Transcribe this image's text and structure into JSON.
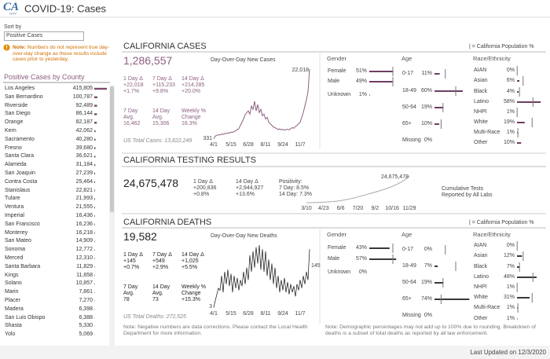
{
  "header": {
    "logo": "CA",
    "logo_sub": "GOV",
    "title": "COVID-19: Cases"
  },
  "sidebar": {
    "sort_label": "Sort by",
    "sort_value": "Positive Cases",
    "note_label": "Note:",
    "note": "Numbers do not represent true day-over-day change as these results include cases prior to yesterday.",
    "list_title": "Positive Cases by County",
    "counties": {
      "names": [
        "Los Angeles",
        "San Bernardino",
        "Riverside",
        "San Diego",
        "Orange",
        "Kern",
        "Sacramento",
        "Fresno",
        "Santa Clara",
        "Alameda",
        "San Joaquin",
        "Contra Costa",
        "Stanislaus",
        "Tulare",
        "Ventura",
        "Imperial",
        "San Francisco",
        "Monterey",
        "San Mateo",
        "Sonoma",
        "Merced",
        "Santa Barbara",
        "Kings",
        "Solano",
        "Marin",
        "Placer",
        "Madera",
        "San Luis Obispo",
        "Shasta",
        "Yolo"
      ],
      "values": [
        415805,
        100787,
        92489,
        86144,
        82187,
        42062,
        40280,
        39680,
        36621,
        31184,
        27239,
        25464,
        22821,
        21993,
        21555,
        16436,
        16236,
        16218,
        14909,
        12772,
        12310,
        11829,
        11658,
        10857,
        7861,
        7270,
        6398,
        6388,
        5330,
        5069
      ],
      "value_labels": [
        "415,805",
        "100,787",
        "92,489",
        "86,144",
        "82,187",
        "42,062",
        "40,280",
        "39,680",
        "36,621",
        "31,184",
        "27,239",
        "25,464",
        "22,821",
        "21,993",
        "21,555",
        "16,436",
        "16,236",
        "16,218",
        "14,909",
        "12,772",
        "12,310",
        "11,829",
        "11,658",
        "10,857",
        "7,861",
        "7,270",
        "6,398",
        "6,388",
        "5,330",
        "5,069"
      ],
      "color": "#7b4a6e"
    }
  },
  "cases": {
    "title": "CALIFORNIA CASES",
    "total": "1,286,557",
    "deltas": [
      {
        "label": "1 Day Δ",
        "lines": [
          "+22,018",
          "+1.7%"
        ]
      },
      {
        "label": "7 Day Δ",
        "lines": [
          "+115,233",
          "+9.8%"
        ]
      },
      {
        "label": "14 Day Δ",
        "lines": [
          "+214,285",
          "+20.0%"
        ]
      }
    ],
    "averages": [
      {
        "label": "7 Day Avg.",
        "value": "16,462"
      },
      {
        "label": "14 Day Avg.",
        "value": "15,306"
      },
      {
        "label": "Weekly % Change",
        "value": "16.3%"
      }
    ],
    "us_total": "US Total Cases: 13,822,249",
    "chart": {
      "type": "line",
      "title": "Day-Over-Day New Cases",
      "x": [
        "4/1",
        null,
        null,
        null,
        null,
        null,
        null,
        null,
        null,
        null,
        null,
        "5/15",
        null,
        null,
        null,
        null,
        null,
        null,
        null,
        null,
        null,
        null,
        "6/28",
        null,
        null,
        null,
        null,
        null,
        null,
        null,
        null,
        null,
        null,
        "8/11",
        null,
        null,
        null,
        null,
        null,
        null,
        null,
        null,
        null,
        null,
        "9/24",
        null,
        null,
        null,
        null,
        null,
        null,
        null,
        null,
        null,
        null,
        "11/7",
        null,
        null,
        null,
        null,
        null,
        null
      ],
      "values": [
        331,
        1200,
        1400,
        1600,
        1500,
        1800,
        1700,
        2000,
        1900,
        2200,
        2100,
        2400,
        2300,
        2600,
        2800,
        3200,
        3500,
        4500,
        5500,
        6500,
        7800,
        8500,
        9000,
        8000,
        10500,
        9500,
        12000,
        9000,
        11000,
        8500,
        9500,
        7500,
        8000,
        6500,
        7000,
        5500,
        5000,
        4500,
        4000,
        3800,
        3500,
        3200,
        3400,
        3100,
        3300,
        3000,
        3200,
        3300,
        3100,
        3500,
        3800,
        3600,
        4200,
        4500,
        5000,
        5500,
        7000,
        8500,
        10500,
        12500,
        15000,
        22018
      ],
      "value_labels": [
        "331",
        null,
        null,
        null,
        null,
        null,
        null,
        null,
        null,
        null,
        null,
        null,
        null,
        null,
        null,
        null,
        null,
        null,
        null,
        null,
        null,
        null,
        null,
        null,
        null,
        null,
        null,
        null,
        null,
        null,
        null,
        null,
        null,
        null,
        null,
        null,
        null,
        null,
        null,
        null,
        null,
        null,
        null,
        null,
        null,
        null,
        null,
        null,
        null,
        null,
        null,
        null,
        null,
        null,
        null,
        null,
        null,
        null,
        null,
        null,
        null,
        "22,018"
      ],
      "color": "#8b5f80"
    },
    "demographics": {
      "legend": "| = California Population %",
      "color": "#6e3d62",
      "groups": [
        {
          "title": "Gender",
          "categories": [
            "Female",
            "Male",
            "Unknown"
          ],
          "values": [
            51,
            49,
            1
          ],
          "value_labels": [
            "51%",
            "49%",
            "1%"
          ],
          "population": [
            50,
            50,
            null
          ]
        },
        {
          "title": "Age",
          "categories": [
            "0-17",
            "18-49",
            "50-64",
            "65+",
            "Missing"
          ],
          "values": [
            11,
            60,
            19,
            10,
            0
          ],
          "value_labels": [
            "11%",
            "60%",
            "19%",
            "10%",
            "0%"
          ],
          "population": [
            23,
            45,
            18,
            14,
            null
          ]
        },
        {
          "title": "Race/Ethnicity",
          "categories": [
            "AIAN",
            "Asian",
            "Black",
            "Latino",
            "NHPI",
            "White",
            "Multi-Race",
            "Other"
          ],
          "values": [
            0,
            6,
            4,
            58,
            1,
            19,
            1,
            10
          ],
          "value_labels": [
            "0%",
            "6%",
            "4%",
            "58%",
            "1%",
            "19%",
            "1%",
            "10%"
          ],
          "population": [
            0.4,
            15,
            6,
            39,
            0.3,
            37,
            2.2,
            null
          ]
        }
      ]
    }
  },
  "testing": {
    "title": "CALIFORNIA TESTING RESULTS",
    "total": "24,675,478",
    "stats": [
      {
        "label": "1 Day Δ",
        "lines": [
          "+200,836",
          "+0.8%"
        ]
      },
      {
        "label": "14 Day Δ",
        "lines": [
          "+2,944,927",
          "+13.6%"
        ]
      },
      {
        "label": "Positivity:",
        "lines": [
          "7 Day: 8.5%",
          "14 Day: 7.3%"
        ]
      }
    ],
    "caption": "Cumulative Tests Reported by All Labs",
    "chart": {
      "type": "line",
      "x": [
        "3/10",
        null,
        null,
        null,
        "4/23",
        null,
        null,
        null,
        "6/6",
        null,
        null,
        null,
        "7/20",
        null,
        null,
        null,
        "9/2",
        null,
        null,
        null,
        "10/16",
        null,
        null,
        null,
        "11/29"
      ],
      "values": [
        0,
        20000,
        100000,
        250000,
        450000,
        700000,
        1000000,
        1400000,
        1900000,
        2600000,
        3400000,
        4300000,
        5300000,
        6400000,
        7500000,
        8600000,
        9700000,
        10900000,
        12100000,
        13500000,
        15000000,
        16800000,
        18800000,
        21300000,
        24675478
      ],
      "value_labels": [
        null,
        null,
        null,
        null,
        null,
        null,
        null,
        null,
        null,
        null,
        null,
        null,
        null,
        null,
        null,
        null,
        null,
        null,
        null,
        null,
        null,
        null,
        null,
        null,
        "24,675,478"
      ],
      "color": "#a8a8a8"
    }
  },
  "deaths": {
    "title": "CALIFORNIA DEATHS",
    "total": "19,582",
    "deltas": [
      {
        "label": "1 Day Δ",
        "lines": [
          "+145",
          "+0.7%"
        ]
      },
      {
        "label": "7 Day Δ",
        "lines": [
          "+549",
          "+2.9%"
        ]
      },
      {
        "label": "14 Day Δ",
        "lines": [
          "+1,025",
          "+5.5%"
        ]
      }
    ],
    "averages": [
      {
        "label": "7 Day Avg.",
        "value": "78"
      },
      {
        "label": "14 Day Avg.",
        "value": "73"
      },
      {
        "label": "Weekly % Change",
        "value": "+15.3%"
      }
    ],
    "us_total": "US Total Deaths: 272,525",
    "chart": {
      "type": "line",
      "title": "Day-Over-Day New Deaths",
      "x": [
        "4/1",
        null,
        null,
        null,
        null,
        null,
        null,
        null,
        null,
        null,
        null,
        "5/15",
        null,
        null,
        null,
        null,
        null,
        null,
        null,
        null,
        null,
        null,
        "6/28",
        null,
        null,
        null,
        null,
        null,
        null,
        null,
        null,
        null,
        null,
        "8/11",
        null,
        null,
        null,
        null,
        null,
        null,
        null,
        null,
        null,
        null,
        "9/24",
        null,
        null,
        null,
        null,
        null,
        null,
        null,
        null,
        null,
        null,
        "11/7",
        null,
        null,
        null,
        null,
        null,
        null
      ],
      "values": [
        3,
        20,
        35,
        50,
        45,
        80,
        40,
        90,
        60,
        95,
        55,
        85,
        40,
        80,
        50,
        75,
        45,
        70,
        55,
        90,
        60,
        100,
        70,
        130,
        90,
        140,
        100,
        150,
        110,
        155,
        95,
        145,
        90,
        140,
        80,
        120,
        70,
        110,
        60,
        100,
        50,
        80,
        40,
        70,
        45,
        75,
        40,
        65,
        35,
        60,
        40,
        55,
        30,
        60,
        45,
        70,
        50,
        80,
        60,
        90,
        70,
        145
      ],
      "value_labels": [
        "3",
        null,
        null,
        null,
        null,
        null,
        null,
        null,
        null,
        null,
        null,
        null,
        null,
        null,
        null,
        null,
        null,
        null,
        null,
        null,
        null,
        null,
        null,
        null,
        null,
        null,
        null,
        null,
        null,
        null,
        null,
        null,
        null,
        null,
        null,
        null,
        null,
        null,
        null,
        null,
        null,
        null,
        null,
        null,
        null,
        null,
        null,
        null,
        null,
        null,
        null,
        null,
        null,
        null,
        null,
        null,
        null,
        null,
        null,
        null,
        null,
        "145"
      ],
      "color": "#111111"
    },
    "demographics": {
      "legend": "| = California Population %",
      "color": "#3a3a3a",
      "groups": [
        {
          "title": "Gender",
          "categories": [
            "Female",
            "Male",
            "Unknown"
          ],
          "values": [
            43,
            57,
            0
          ],
          "value_labels": [
            "43%",
            "57%",
            "0%"
          ],
          "population": [
            50,
            50,
            null
          ]
        },
        {
          "title": "Age",
          "categories": [
            "0-17",
            "18-49",
            "50-64",
            "65+",
            "Missing"
          ],
          "values": [
            0,
            7,
            19,
            74,
            0
          ],
          "value_labels": [
            "0%",
            "7%",
            "19%",
            "74%",
            "0%"
          ],
          "population": [
            23,
            45,
            18,
            14,
            null
          ]
        },
        {
          "title": "Race/Ethnicity",
          "categories": [
            "AIAN",
            "Asian",
            "Black",
            "Latino",
            "NHPI",
            "White",
            "Multi-Race",
            "Other"
          ],
          "values": [
            0,
            12,
            7,
            48,
            1,
            31,
            1,
            1
          ],
          "value_labels": [
            "0%",
            "12%",
            "7%",
            "48%",
            "1%",
            "31%",
            "1%",
            "1%"
          ],
          "population": [
            0.4,
            15,
            6,
            39,
            0.3,
            37,
            2.2,
            null
          ]
        }
      ]
    }
  },
  "footer": {
    "note_left": "Note: Negative numbers are data corrections. Please contact the Local Health Department for more information.",
    "note_right": "Note: Demographic percentages may not add up to 100% due to rounding. Breakdown of deaths is a subset of total deaths as reported by all law enforcement.",
    "updated": "Last Updated on 12/3/2020"
  }
}
